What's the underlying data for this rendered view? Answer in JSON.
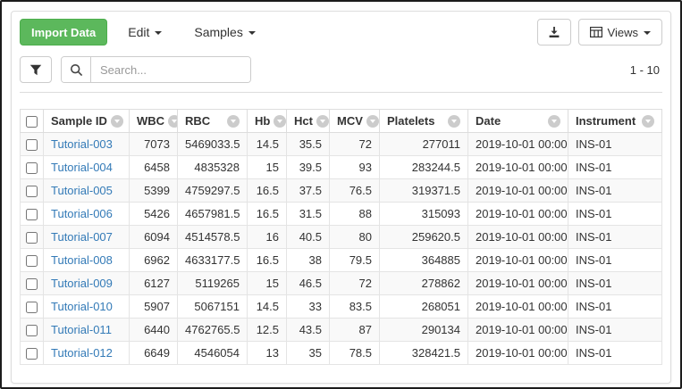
{
  "toolbar": {
    "import_label": "Import Data",
    "edit_label": "Edit",
    "samples_label": "Samples",
    "views_label": "Views"
  },
  "search": {
    "placeholder": "Search..."
  },
  "pagination": {
    "range": "1 - 10"
  },
  "colors": {
    "import_button_green": "#5cb85c",
    "link_blue": "#337ab7",
    "panel_border": "#dddddd",
    "stripe_gray": "#f9f9f9"
  },
  "icons": {
    "filter": "funnel",
    "search": "magnifier",
    "download": "arrow-down-into-tray",
    "views": "table-grid",
    "caret": "triangle-down",
    "column_menu": "circle-chevron-down"
  },
  "table": {
    "columns": [
      {
        "key": "id",
        "label": "Sample ID",
        "align": "left"
      },
      {
        "key": "wbc",
        "label": "WBC",
        "align": "right"
      },
      {
        "key": "rbc",
        "label": "RBC",
        "align": "right"
      },
      {
        "key": "hb",
        "label": "Hb",
        "align": "right"
      },
      {
        "key": "hct",
        "label": "Hct",
        "align": "right"
      },
      {
        "key": "mcv",
        "label": "MCV",
        "align": "right"
      },
      {
        "key": "platelets",
        "label": "Platelets",
        "align": "right"
      },
      {
        "key": "date",
        "label": "Date",
        "align": "left"
      },
      {
        "key": "instrument",
        "label": "Instrument",
        "align": "left"
      }
    ],
    "rows": [
      {
        "id": "Tutorial-003",
        "wbc": "7073",
        "rbc": "5469033.5",
        "hb": "14.5",
        "hct": "35.5",
        "mcv": "72",
        "platelets": "277011",
        "date": "2019-10-01 00:00",
        "instrument": "INS-01"
      },
      {
        "id": "Tutorial-004",
        "wbc": "6458",
        "rbc": "4835328",
        "hb": "15",
        "hct": "39.5",
        "mcv": "93",
        "platelets": "283244.5",
        "date": "2019-10-01 00:00",
        "instrument": "INS-01"
      },
      {
        "id": "Tutorial-005",
        "wbc": "5399",
        "rbc": "4759297.5",
        "hb": "16.5",
        "hct": "37.5",
        "mcv": "76.5",
        "platelets": "319371.5",
        "date": "2019-10-01 00:00",
        "instrument": "INS-01"
      },
      {
        "id": "Tutorial-006",
        "wbc": "5426",
        "rbc": "4657981.5",
        "hb": "16.5",
        "hct": "31.5",
        "mcv": "88",
        "platelets": "315093",
        "date": "2019-10-01 00:00",
        "instrument": "INS-01"
      },
      {
        "id": "Tutorial-007",
        "wbc": "6094",
        "rbc": "4514578.5",
        "hb": "16",
        "hct": "40.5",
        "mcv": "80",
        "platelets": "259620.5",
        "date": "2019-10-01 00:00",
        "instrument": "INS-01"
      },
      {
        "id": "Tutorial-008",
        "wbc": "6962",
        "rbc": "4633177.5",
        "hb": "16.5",
        "hct": "38",
        "mcv": "79.5",
        "platelets": "364885",
        "date": "2019-10-01 00:00",
        "instrument": "INS-01"
      },
      {
        "id": "Tutorial-009",
        "wbc": "6127",
        "rbc": "5119265",
        "hb": "15",
        "hct": "46.5",
        "mcv": "72",
        "platelets": "278862",
        "date": "2019-10-01 00:00",
        "instrument": "INS-01"
      },
      {
        "id": "Tutorial-010",
        "wbc": "5907",
        "rbc": "5067151",
        "hb": "14.5",
        "hct": "33",
        "mcv": "83.5",
        "platelets": "268051",
        "date": "2019-10-01 00:00",
        "instrument": "INS-01"
      },
      {
        "id": "Tutorial-011",
        "wbc": "6440",
        "rbc": "4762765.5",
        "hb": "12.5",
        "hct": "43.5",
        "mcv": "87",
        "platelets": "290134",
        "date": "2019-10-01 00:00",
        "instrument": "INS-01"
      },
      {
        "id": "Tutorial-012",
        "wbc": "6649",
        "rbc": "4546054",
        "hb": "13",
        "hct": "35",
        "mcv": "78.5",
        "platelets": "328421.5",
        "date": "2019-10-01 00:00",
        "instrument": "INS-01"
      }
    ]
  }
}
